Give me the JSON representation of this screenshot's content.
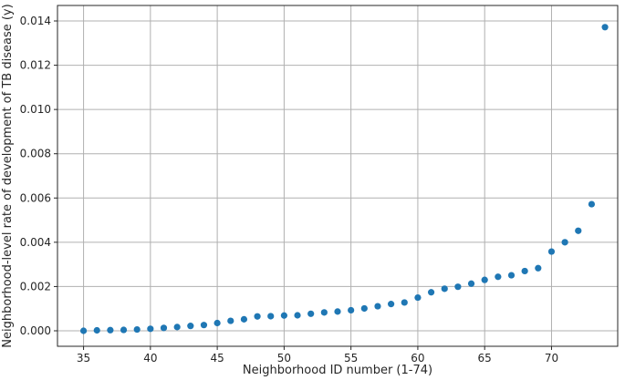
{
  "chart_data": {
    "type": "scatter",
    "title": "",
    "xlabel": "Neighborhood ID number (1-74)",
    "ylabel": "Neighborhood-level rate of development of TB disease (y)",
    "xlim": [
      33.05,
      74.95
    ],
    "ylim": [
      -0.0007,
      0.0147
    ],
    "xticks": [
      35,
      40,
      45,
      50,
      55,
      60,
      65,
      70
    ],
    "yticks": [
      0.0,
      0.002,
      0.004,
      0.006,
      0.008,
      0.01,
      0.012,
      0.014
    ],
    "ytick_labels": [
      "0.000",
      "0.002",
      "0.004",
      "0.006",
      "0.008",
      "0.010",
      "0.012",
      "0.014"
    ],
    "grid": true,
    "marker_color": "#1f77b4",
    "series": [
      {
        "x": [
          35,
          36,
          37,
          38,
          39,
          40,
          41,
          42,
          43,
          44,
          45,
          46,
          47,
          48,
          49,
          50,
          51,
          52,
          53,
          54,
          55,
          56,
          57,
          58,
          59,
          60,
          61,
          62,
          63,
          64,
          65,
          66,
          67,
          68,
          69,
          70,
          71,
          72,
          73,
          74
        ],
        "y": [
          0.0,
          2e-05,
          3e-05,
          4e-05,
          6e-05,
          9e-05,
          0.00013,
          0.00017,
          0.00022,
          0.00026,
          0.00035,
          0.00045,
          0.00052,
          0.00065,
          0.00066,
          0.00069,
          0.0007,
          0.00077,
          0.00083,
          0.00087,
          0.00093,
          0.00101,
          0.00111,
          0.00121,
          0.00128,
          0.0015,
          0.00174,
          0.0019,
          0.00199,
          0.00213,
          0.0023,
          0.00244,
          0.00251,
          0.0027,
          0.00283,
          0.00358,
          0.004,
          0.00452,
          0.00572,
          0.01372
        ]
      }
    ]
  }
}
